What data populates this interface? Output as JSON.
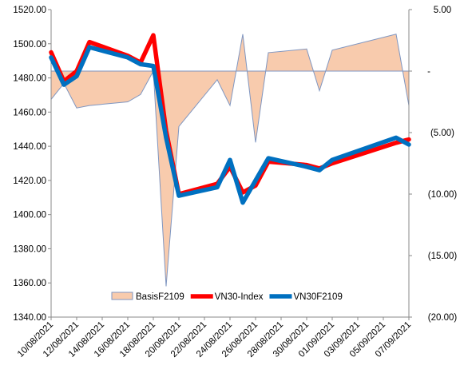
{
  "chart_data": {
    "type": "line",
    "title": "",
    "xlabel": "",
    "ylabel": "",
    "y2label": "",
    "ylim": [
      1340,
      1520
    ],
    "y2lim": [
      -20,
      5
    ],
    "yticks": [
      1340,
      1360,
      1380,
      1400,
      1420,
      1440,
      1460,
      1480,
      1500,
      1520
    ],
    "ytick_labels": [
      "1340.00",
      "1360.00",
      "1380.00",
      "1400.00",
      "1420.00",
      "1440.00",
      "1460.00",
      "1480.00",
      "1500.00",
      "1520.00"
    ],
    "y2ticks": [
      5,
      0,
      -5,
      -10,
      -15,
      -20
    ],
    "y2tick_labels": [
      "5.00",
      "-",
      "(5.00)",
      "(10.00)",
      "(15.00)",
      "(20.00)"
    ],
    "xlim": [
      "10/08/2021",
      "07/09/2021"
    ],
    "xticks": [
      "10/08/2021",
      "12/08/2021",
      "14/08/2021",
      "16/08/2021",
      "18/08/2021",
      "20/08/2021",
      "22/08/2021",
      "24/08/2021",
      "26/08/2021",
      "28/08/2021",
      "30/08/2021",
      "01/09/2021",
      "03/09/2021",
      "05/09/2021",
      "07/09/2021"
    ],
    "grid": false,
    "legend_position": "bottom-center",
    "x": [
      "10/08/2021",
      "11/08/2021",
      "12/08/2021",
      "13/08/2021",
      "16/08/2021",
      "17/08/2021",
      "18/08/2021",
      "19/08/2021",
      "20/08/2021",
      "23/08/2021",
      "24/08/2021",
      "25/08/2021",
      "26/08/2021",
      "27/08/2021",
      "30/08/2021",
      "31/08/2021",
      "01/09/2021",
      "06/09/2021",
      "07/09/2021"
    ],
    "series": [
      {
        "name": "BasisF2109",
        "type": "area",
        "axis": "secondary",
        "color": "#F8CBAD",
        "edge_color": "#7F96C1",
        "values": [
          -2.3,
          -1.0,
          -3.0,
          -2.8,
          -2.5,
          -1.9,
          0.0,
          -17.5,
          -4.5,
          -0.7,
          -2.8,
          3.0,
          -5.8,
          1.5,
          1.8,
          -1.6,
          1.7,
          3.0,
          -2.8
        ]
      },
      {
        "name": "VN30-Index",
        "type": "line",
        "axis": "primary",
        "color": "#FF0000",
        "values": [
          1495,
          1478,
          1484,
          1501,
          1493,
          1489,
          1505,
          1449,
          1412,
          1418,
          1428,
          1413,
          1417,
          1431,
          1429,
          1427,
          1430,
          1442,
          1444
        ]
      },
      {
        "name": "VN30F2109",
        "type": "line",
        "axis": "primary",
        "color": "#0070C0",
        "values": [
          1492,
          1476,
          1481,
          1498,
          1492,
          1488,
          1487,
          1445,
          1411,
          1416,
          1432,
          1407,
          1420,
          1433,
          1428,
          1426,
          1432,
          1445,
          1441
        ]
      }
    ]
  }
}
